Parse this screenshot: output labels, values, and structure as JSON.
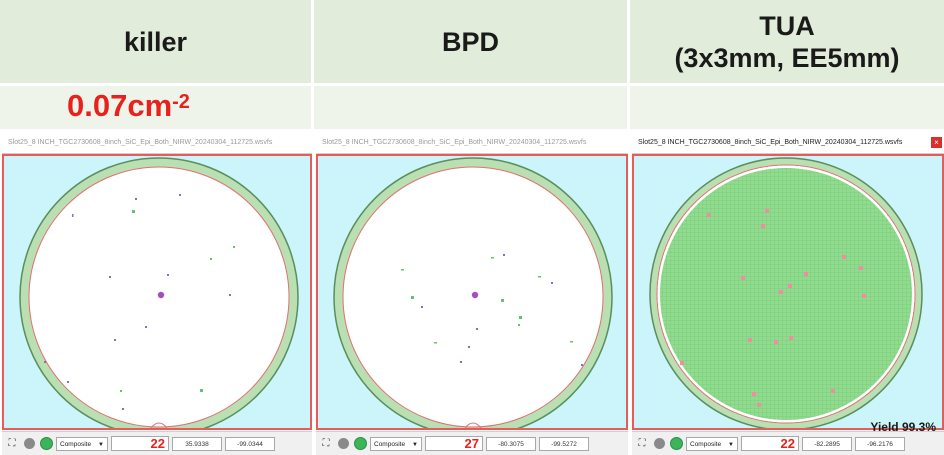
{
  "header": {
    "col1": "killer",
    "col2": "BPD",
    "col3_line1": "TUA",
    "col3_line2": "(3x3mm, EE5mm)"
  },
  "subrow": {
    "density_value": "0.07cm",
    "density_exponent": "-2"
  },
  "panels": [
    {
      "title": "Slot25_8 INCH_TGC2730608_8inch_SiC_Epi_Both_NIRW_20240304_112725.wsvfs",
      "mode": "Composite",
      "count": "22",
      "coord_x": "35.9338",
      "coord_y": "-99.0344"
    },
    {
      "title": "Slot25_8 INCH_TGC2730608_8inch_SiC_Epi_Both_NIRW_20240304_112725.wsvfs",
      "mode": "Composite",
      "count": "27",
      "coord_x": "-80.3075",
      "coord_y": "-99.5272"
    },
    {
      "title": "Slot25_8 INCH_TGC2730608_8inch_SiC_Epi_Both_NIRW_20240304_112725.wsvfs",
      "mode": "Composite",
      "count": "22",
      "coord_x": "-82.2895",
      "coord_y": "-96.2176",
      "yield": "Yield 99.3%"
    }
  ],
  "toolbar": {
    "fit_icon": "expand-icon",
    "close_symbol": "×",
    "dropdown_symbol": "▼"
  },
  "colors": {
    "wafer_bg": "#ccf4fb",
    "panel_border": "#e85b5b",
    "count_text": "#e8211d",
    "good_die": "#8fdc8f",
    "fail_die": "#f28ca0"
  }
}
